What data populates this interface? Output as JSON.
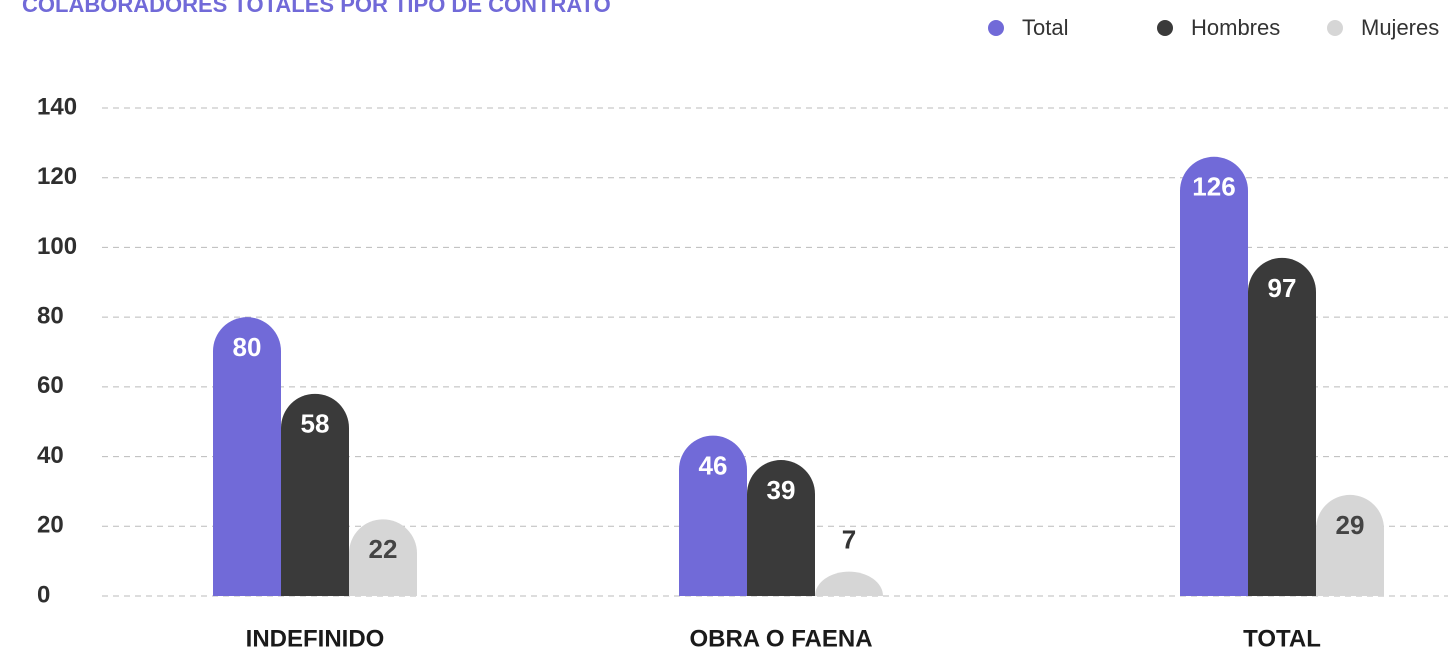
{
  "chart_data": {
    "type": "bar",
    "title": "COLABORADORES TOTALES POR TIPO DE CONTRATO",
    "categories": [
      "INDEFINIDO",
      "OBRA O FAENA",
      "TOTAL"
    ],
    "series": [
      {
        "name": "Total",
        "color": "#716ad8",
        "values": [
          80,
          46,
          126
        ]
      },
      {
        "name": "Hombres",
        "color": "#3a3a3a",
        "values": [
          58,
          39,
          97
        ]
      },
      {
        "name": "Mujeres",
        "color": "#d6d6d6",
        "values": [
          22,
          7,
          29
        ]
      }
    ],
    "ylim": [
      0,
      140
    ],
    "yticks": [
      0,
      20,
      40,
      60,
      80,
      100,
      120,
      140
    ],
    "grid": true,
    "legend": "top-right"
  }
}
